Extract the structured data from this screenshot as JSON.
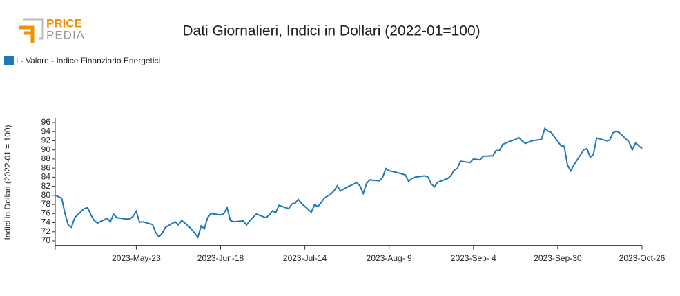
{
  "logo": {
    "line1": "PRICE",
    "line2": "PEDIA"
  },
  "chart_data": {
    "type": "line",
    "title": "Dati Giornalieri, Indici in Dollari (2022-01=100)",
    "y_label": "Indici in Dollari (2022-01 = 100)",
    "legend": "top-left",
    "series": [
      {
        "name": "I - Valore - Indice Finanziario Energetici",
        "color": "#1f77b4",
        "x": [
          "2023-04-28",
          "2023-04-30",
          "2023-05-01",
          "2023-05-02",
          "2023-05-03",
          "2023-05-04",
          "2023-05-06",
          "2023-05-07",
          "2023-05-08",
          "2023-05-09",
          "2023-05-10",
          "2023-05-11",
          "2023-05-13",
          "2023-05-14",
          "2023-05-15",
          "2023-05-16",
          "2023-05-17",
          "2023-05-20",
          "2023-05-21",
          "2023-05-22",
          "2023-05-23",
          "2023-05-24",
          "2023-05-25",
          "2023-05-27",
          "2023-05-28",
          "2023-05-29",
          "2023-05-30",
          "2023-05-31",
          "2023-06-01",
          "2023-06-03",
          "2023-06-04",
          "2023-06-05",
          "2023-06-06",
          "2023-06-08",
          "2023-06-09",
          "2023-06-10",
          "2023-06-11",
          "2023-06-12",
          "2023-06-13",
          "2023-06-14",
          "2023-06-15",
          "2023-06-18",
          "2023-06-19",
          "2023-06-20",
          "2023-06-21",
          "2023-06-22",
          "2023-06-25",
          "2023-06-26",
          "2023-06-27",
          "2023-06-29",
          "2023-07-02",
          "2023-07-03",
          "2023-07-04",
          "2023-07-05",
          "2023-07-06",
          "2023-07-09",
          "2023-07-10",
          "2023-07-11",
          "2023-07-12",
          "2023-07-13",
          "2023-07-16",
          "2023-07-17",
          "2023-07-18",
          "2023-07-19",
          "2023-07-20",
          "2023-07-22",
          "2023-07-23",
          "2023-07-24",
          "2023-07-25",
          "2023-07-27",
          "2023-07-30",
          "2023-07-31",
          "2023-08-01",
          "2023-08-02",
          "2023-08-03",
          "2023-08-06",
          "2023-08-07",
          "2023-08-08",
          "2023-08-09",
          "2023-08-11",
          "2023-08-14",
          "2023-08-15",
          "2023-08-16",
          "2023-08-17",
          "2023-08-20",
          "2023-08-21",
          "2023-08-22",
          "2023-08-23",
          "2023-08-24",
          "2023-08-27",
          "2023-08-28",
          "2023-08-29",
          "2023-08-30",
          "2023-08-31",
          "2023-09-03",
          "2023-09-04",
          "2023-09-06",
          "2023-09-07",
          "2023-09-10",
          "2023-09-11",
          "2023-09-12",
          "2023-09-13",
          "2023-09-15",
          "2023-09-17",
          "2023-09-18",
          "2023-09-19",
          "2023-09-20",
          "2023-09-22",
          "2023-09-25",
          "2023-09-26",
          "2023-09-27",
          "2023-09-28",
          "2023-10-01",
          "2023-10-02",
          "2023-10-03",
          "2023-10-04",
          "2023-10-05",
          "2023-10-08",
          "2023-10-09",
          "2023-10-10",
          "2023-10-11",
          "2023-10-12",
          "2023-10-15",
          "2023-10-16",
          "2023-10-17",
          "2023-10-18",
          "2023-10-19",
          "2023-10-22",
          "2023-10-23",
          "2023-10-24",
          "2023-10-26"
        ],
        "values": [
          80.0,
          79.4,
          76.0,
          73.5,
          73.0,
          75.1,
          76.5,
          77.1,
          77.3,
          75.7,
          74.5,
          73.9,
          74.6,
          75.0,
          74.2,
          75.9,
          75.1,
          74.8,
          74.8,
          75.4,
          76.5,
          74.1,
          74.2,
          73.8,
          73.6,
          71.8,
          70.9,
          71.7,
          73.0,
          73.8,
          74.2,
          73.5,
          74.5,
          73.3,
          72.6,
          71.7,
          70.8,
          73.3,
          72.7,
          75.1,
          76.0,
          75.7,
          76.0,
          77.3,
          74.5,
          74.2,
          74.4,
          73.5,
          74.4,
          75.9,
          75.1,
          75.7,
          76.6,
          76.2,
          77.8,
          77.1,
          78.1,
          78.3,
          79.1,
          78.2,
          76.3,
          78.0,
          77.5,
          78.4,
          79.4,
          80.3,
          81.0,
          82.1,
          81.0,
          81.8,
          82.8,
          82.1,
          80.4,
          82.6,
          83.4,
          83.2,
          84.0,
          85.9,
          85.4,
          85.1,
          84.5,
          83.1,
          83.7,
          84.0,
          84.3,
          84.0,
          82.5,
          81.9,
          82.9,
          83.7,
          84.3,
          85.5,
          85.9,
          87.5,
          87.2,
          88.0,
          87.8,
          88.6,
          88.7,
          89.9,
          89.8,
          91.2,
          91.8,
          92.3,
          92.7,
          92.0,
          91.4,
          92.0,
          92.3,
          94.7,
          94.1,
          93.8,
          90.9,
          90.8,
          86.7,
          85.4,
          86.7,
          90.0,
          90.3,
          88.4,
          89.0,
          92.6,
          92.0,
          92.1,
          93.7,
          94.1,
          93.8,
          91.7,
          90.0,
          91.5,
          90.3
        ]
      }
    ],
    "xlim": [
      "2023-04-28",
      "2023-10-26"
    ],
    "xticks": [
      {
        "value": "2023-05-23",
        "label": "2023-May-23"
      },
      {
        "value": "2023-06-18",
        "label": "2023-Jun-18"
      },
      {
        "value": "2023-07-14",
        "label": "2023-Jul-14"
      },
      {
        "value": "2023-08-09",
        "label": "2023-Aug- 9"
      },
      {
        "value": "2023-09-04",
        "label": "2023-Sep- 4"
      },
      {
        "value": "2023-09-30",
        "label": "2023-Sep-30"
      },
      {
        "value": "2023-10-26",
        "label": "2023-Oct-26"
      }
    ],
    "ylim": [
      69,
      96
    ],
    "yticks": [
      70,
      72,
      74,
      76,
      78,
      80,
      82,
      84,
      86,
      88,
      90,
      92,
      94,
      96
    ]
  }
}
